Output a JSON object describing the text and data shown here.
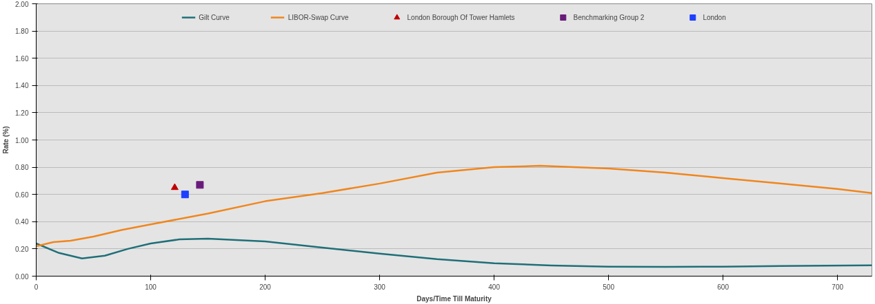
{
  "chart_data": {
    "type": "line",
    "xlabel": "Days/Time Till Maturity",
    "ylabel": "Rate (%)",
    "xlim": [
      0,
      730
    ],
    "xticks": [
      0,
      100,
      200,
      300,
      400,
      500,
      600,
      700
    ],
    "ylim": [
      0,
      2
    ],
    "yticks": [
      {
        "value": 0,
        "label": "0.00"
      },
      {
        "value": 0.2,
        "label": "0.20"
      },
      {
        "value": 0.4,
        "label": "0.40"
      },
      {
        "value": 0.6,
        "label": "0.60"
      },
      {
        "value": 0.8,
        "label": "0.80"
      },
      {
        "value": 1.0,
        "label": "1.00"
      },
      {
        "value": 1.2,
        "label": "1.20"
      },
      {
        "value": 1.4,
        "label": "1.40"
      },
      {
        "value": 1.6,
        "label": "1.60"
      },
      {
        "value": 1.8,
        "label": "1.80"
      },
      {
        "value": 2.0,
        "label": "2.00"
      }
    ],
    "grid": "y",
    "legend": "top",
    "series": [
      {
        "name": "Gilt Curve",
        "color": "#1f6f78",
        "x": [
          0,
          20,
          40,
          60,
          80,
          100,
          125,
          150,
          200,
          250,
          300,
          350,
          400,
          450,
          500,
          550,
          600,
          650,
          730
        ],
        "values": [
          0.24,
          0.17,
          0.13,
          0.15,
          0.2,
          0.24,
          0.27,
          0.275,
          0.255,
          0.21,
          0.165,
          0.125,
          0.095,
          0.078,
          0.07,
          0.068,
          0.07,
          0.074,
          0.08
        ]
      },
      {
        "name": "LIBOR-Swap Curve",
        "color": "#f0861d",
        "x": [
          0,
          15,
          30,
          50,
          75,
          100,
          150,
          200,
          250,
          300,
          350,
          400,
          440,
          500,
          550,
          600,
          650,
          700,
          730
        ],
        "values": [
          0.22,
          0.25,
          0.26,
          0.29,
          0.34,
          0.38,
          0.46,
          0.55,
          0.61,
          0.68,
          0.76,
          0.8,
          0.81,
          0.79,
          0.76,
          0.72,
          0.68,
          0.64,
          0.61
        ]
      },
      {
        "name": "London Borough Of Tower Hamlets",
        "type": "scatter",
        "marker": "triangle",
        "color": "#c00000",
        "x": [
          121
        ],
        "values": [
          0.65
        ]
      },
      {
        "name": "Benchmarking Group 2",
        "type": "scatter",
        "marker": "square",
        "color": "#6a1b7a",
        "x": [
          143
        ],
        "values": [
          0.67
        ]
      },
      {
        "name": "London",
        "type": "scatter",
        "marker": "square",
        "color": "#1f3fff",
        "x": [
          130
        ],
        "values": [
          0.6
        ]
      }
    ]
  }
}
